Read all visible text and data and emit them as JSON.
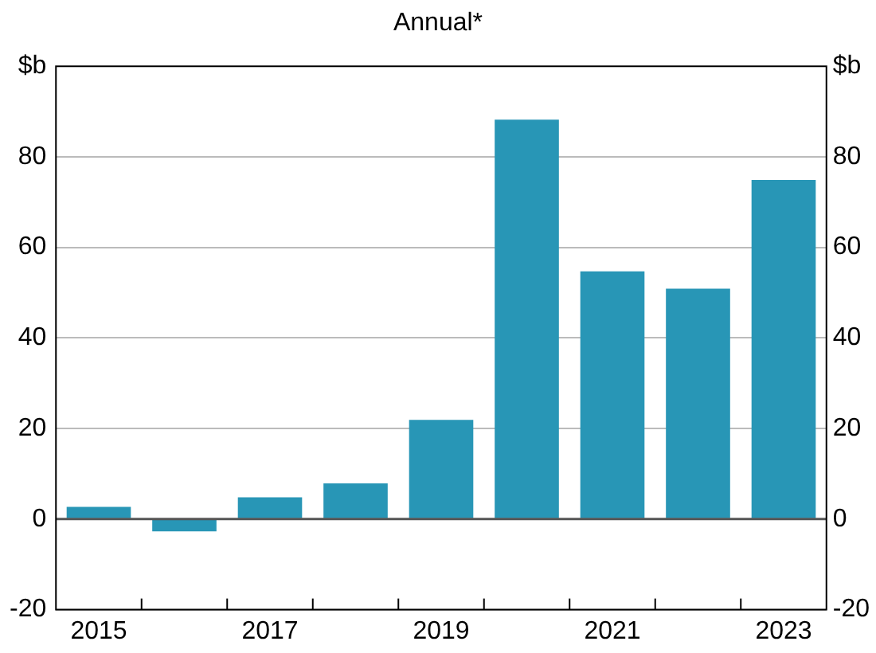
{
  "chart_data": {
    "type": "bar",
    "subtitle": "Annual*",
    "categories": [
      "2015",
      null,
      "2017",
      null,
      "2019",
      null,
      "2021",
      null,
      "2023"
    ],
    "values": [
      2.7,
      -2.7,
      4.8,
      7.9,
      21.9,
      88.2,
      54.7,
      50.9,
      74.9
    ],
    "color": "#2896b6",
    "ylim": [
      -20,
      100
    ],
    "yticks": [
      -20,
      0,
      20,
      40,
      60,
      80,
      {
        "value": 100,
        "label": "$b"
      }
    ],
    "y2lim": [
      -20,
      100
    ],
    "y2ticks": [
      -20,
      0,
      20,
      40,
      60,
      80,
      {
        "value": 100,
        "label": "$b"
      }
    ],
    "grid": "y",
    "legend": false
  }
}
